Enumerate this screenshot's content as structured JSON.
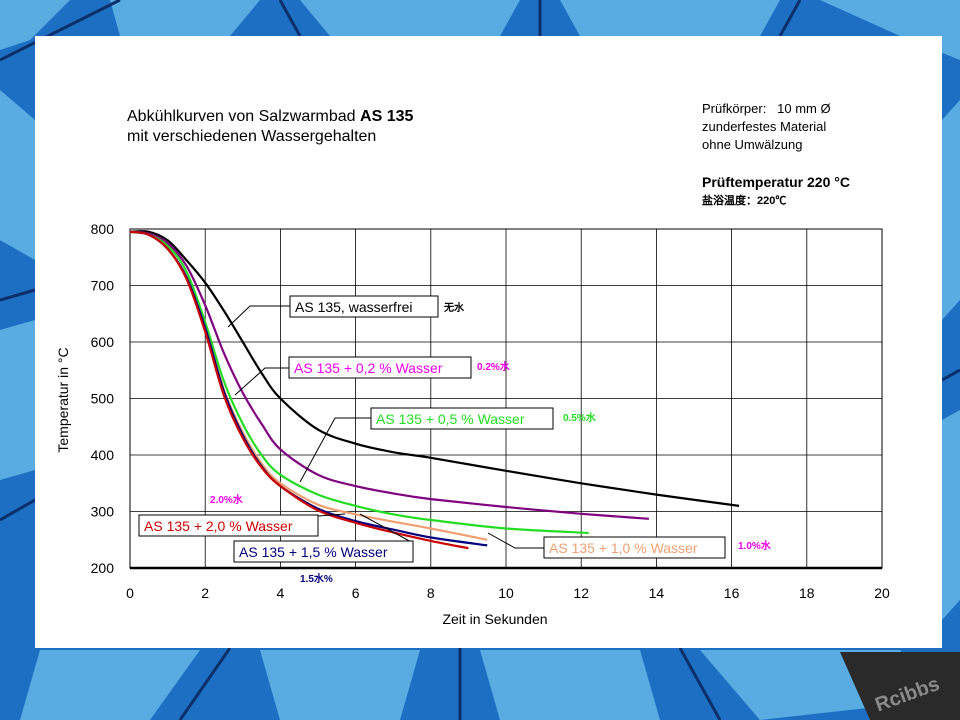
{
  "title_lines": [
    "Abkühlkurven von Salzwarmbad ",
    "AS 135",
    "mit verschiedenen Wassergehalten"
  ],
  "info": {
    "line1_label": "Prüfkörper:",
    "line1_value": "10 mm Ø",
    "line2": "zunderfestes Material",
    "line3": "ohne Umwälzung",
    "line4": "Prüftemperatur 220 °C",
    "line5": "盐浴温度：220℃"
  },
  "watermark": "Rcibbs",
  "colors": {
    "black": "#000000",
    "purple": "#800080",
    "green": "#22dd22",
    "orange": "#f0a070",
    "blue": "#000080",
    "red": "#cc0000",
    "magenta": "#ee00ee",
    "background": "#1d6fc4"
  },
  "chart_data": {
    "type": "line",
    "xlabel": "Zeit in Sekunden",
    "ylabel": "Temperatur in °C",
    "xlim": [
      0,
      20
    ],
    "ylim": [
      200,
      800
    ],
    "xticks": [
      "0",
      "2",
      "4",
      "6",
      "8",
      "10",
      "12",
      "14",
      "16",
      "18",
      "20"
    ],
    "yticks": [
      "800",
      "700",
      "600",
      "500",
      "400",
      "300",
      "200"
    ],
    "grid": true,
    "series": [
      {
        "name": "AS 135, wasserfrei",
        "cn": "无水",
        "color": "#000000",
        "x": [
          0,
          0.5,
          1,
          1.5,
          2,
          2.5,
          3,
          3.5,
          4,
          5,
          6,
          7,
          8,
          10,
          12,
          14,
          16.2
        ],
        "y": [
          795,
          795,
          780,
          745,
          705,
          655,
          600,
          545,
          500,
          445,
          420,
          405,
          395,
          372,
          350,
          330,
          310
        ]
      },
      {
        "name": "AS 135 + 0,2 % Wasser",
        "cn": "0.2%水",
        "color": "#800080",
        "x": [
          0,
          0.5,
          1,
          1.5,
          2,
          2.5,
          3,
          3.5,
          4,
          5,
          6,
          7,
          8,
          10,
          12,
          13.8
        ],
        "y": [
          795,
          792,
          775,
          735,
          665,
          580,
          510,
          455,
          410,
          365,
          345,
          332,
          322,
          308,
          296,
          287
        ]
      },
      {
        "name": "AS 135 + 0,5 % Wasser",
        "cn": "0.5%水",
        "color": "#22dd22",
        "x": [
          0,
          0.5,
          1,
          1.5,
          2,
          2.5,
          3,
          3.5,
          4,
          5,
          6,
          7,
          8,
          10,
          12.2
        ],
        "y": [
          795,
          790,
          770,
          725,
          635,
          530,
          455,
          400,
          365,
          330,
          310,
          295,
          285,
          270,
          262
        ]
      },
      {
        "name": "AS 135 + 1,0 % Wasser",
        "cn": "1.0%水",
        "color": "#f0a070",
        "x": [
          0,
          0.5,
          1,
          1.5,
          2,
          2.5,
          3,
          3.5,
          4,
          5,
          6,
          7,
          8,
          9.5
        ],
        "y": [
          795,
          790,
          765,
          715,
          625,
          515,
          440,
          385,
          350,
          312,
          295,
          282,
          270,
          250
        ]
      },
      {
        "name": "AS 135 + 1,5 % Wasser",
        "cn": "1.5水%",
        "color": "#000080",
        "x": [
          0,
          0.5,
          1,
          1.5,
          2,
          2.5,
          3,
          3.5,
          4,
          5,
          6,
          7,
          8,
          9.5
        ],
        "y": [
          795,
          790,
          765,
          715,
          625,
          512,
          435,
          380,
          345,
          305,
          283,
          268,
          254,
          240
        ]
      },
      {
        "name": "AS 135 + 2,0 % Wasser",
        "cn": "2.0%水",
        "color": "#cc0000",
        "x": [
          0,
          0.5,
          1,
          1.5,
          2,
          2.5,
          3,
          3.5,
          4,
          5,
          6,
          7,
          8,
          9
        ],
        "y": [
          795,
          790,
          765,
          712,
          618,
          505,
          430,
          378,
          345,
          302,
          280,
          263,
          248,
          235
        ]
      }
    ]
  }
}
